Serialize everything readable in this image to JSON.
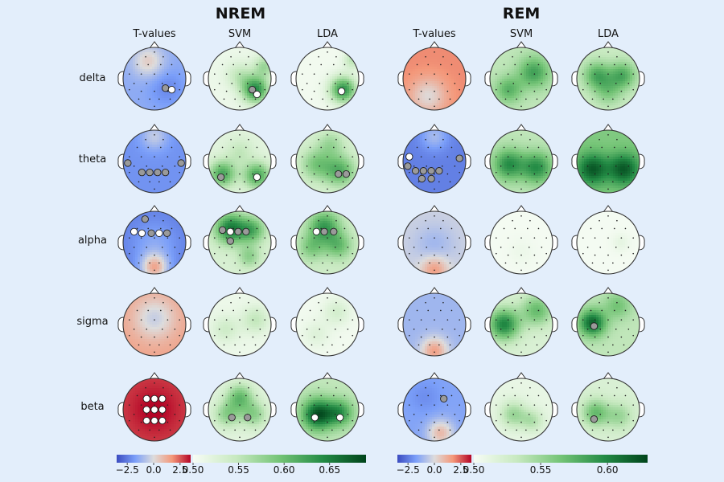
{
  "chart_data": {
    "type": "topomap-grid",
    "groups": [
      {
        "title": "NREM",
        "columns": [
          "T-values",
          "SVM",
          "LDA"
        ]
      },
      {
        "title": "REM",
        "columns": [
          "T-values",
          "SVM",
          "LDA"
        ]
      }
    ],
    "rows": [
      "delta",
      "theta",
      "alpha",
      "sigma",
      "beta"
    ],
    "colorbars": [
      {
        "name": "nrem-tvalues",
        "cmap": "coolwarm",
        "range": [
          -3.5,
          3.5
        ],
        "ticks": [
          "−2.5",
          "0.0",
          "2.5"
        ]
      },
      {
        "name": "nrem-accuracy",
        "cmap": "greens",
        "range": [
          0.5,
          0.69
        ],
        "ticks": [
          "0.50",
          "0.55",
          "0.60",
          "0.65"
        ]
      },
      {
        "name": "rem-tvalues",
        "cmap": "coolwarm",
        "range": [
          -3.5,
          3.5
        ],
        "ticks": [
          "−2.5",
          "0.0",
          "2.5"
        ]
      },
      {
        "name": "rem-accuracy",
        "cmap": "greens",
        "range": [
          0.5,
          0.63
        ],
        "ticks": [
          "0.50",
          "0.55",
          "0.60"
        ]
      }
    ],
    "maps": {
      "NREM": {
        "T-values": {
          "delta": {
            "base": -1.4,
            "blobs": [
              [
                -0.2,
                -0.55,
                0.35,
                1.8
              ],
              [
                0.4,
                0.3,
                0.4,
                -0.8
              ]
            ],
            "markers": [
              [
                0.35,
                0.3,
                "gray"
              ],
              [
                0.55,
                0.35,
                "white"
              ]
            ]
          },
          "theta": {
            "base": -2.0,
            "blobs": [
              [
                0,
                -0.8,
                0.3,
                1.5
              ]
            ],
            "markers": [
              [
                -0.85,
                0.05,
                "gray"
              ],
              [
                -0.4,
                0.35,
                "gray"
              ],
              [
                -0.15,
                0.35,
                "gray"
              ],
              [
                0.1,
                0.35,
                "gray"
              ],
              [
                0.35,
                0.35,
                "gray"
              ],
              [
                0.85,
                0.05,
                "gray"
              ]
            ]
          },
          "alpha": {
            "base": -2.4,
            "blobs": [
              [
                0,
                0.8,
                0.3,
                3.5
              ],
              [
                0,
                0.05,
                0.5,
                0.9
              ]
            ],
            "markers": [
              [
                -0.3,
                -0.75,
                "gray"
              ],
              [
                -0.65,
                -0.35,
                "white"
              ],
              [
                -0.4,
                -0.3,
                "white"
              ],
              [
                -0.1,
                -0.3,
                "gray"
              ],
              [
                0.15,
                -0.3,
                "white"
              ],
              [
                0.4,
                -0.3,
                "gray"
              ]
            ]
          },
          "sigma": {
            "base": 1.4,
            "blobs": [
              [
                0,
                -0.2,
                0.45,
                -1.8
              ]
            ],
            "markers": []
          },
          "beta": {
            "base": 2.8,
            "blobs": [
              [
                0,
                0,
                0.5,
                0.8
              ]
            ],
            "markers": [
              [
                -0.25,
                -0.35,
                "white"
              ],
              [
                0,
                -0.35,
                "white"
              ],
              [
                0.25,
                -0.35,
                "white"
              ],
              [
                -0.25,
                0,
                "white"
              ],
              [
                0,
                0,
                "white"
              ],
              [
                0.25,
                0,
                "white"
              ],
              [
                -0.25,
                0.35,
                "white"
              ],
              [
                0,
                0.35,
                "white"
              ],
              [
                0.25,
                0.35,
                "white"
              ]
            ]
          }
        },
        "SVM": {
          "delta": {
            "base": 0.51,
            "blobs": [
              [
                0.5,
                0.35,
                0.3,
                0.13
              ],
              [
                0.8,
                -0.4,
                0.25,
                0.06
              ],
              [
                0,
                -0.1,
                0.3,
                0.04
              ]
            ],
            "markers": [
              [
                0.4,
                0.35,
                "gray"
              ],
              [
                0.55,
                0.5,
                "white"
              ]
            ]
          },
          "theta": {
            "base": 0.52,
            "blobs": [
              [
                -0.55,
                0.4,
                0.3,
                0.1
              ],
              [
                0.55,
                0.45,
                0.3,
                0.1
              ],
              [
                0,
                -0.3,
                0.3,
                0.03
              ]
            ],
            "markers": [
              [
                -0.6,
                0.5,
                "gray"
              ],
              [
                0.55,
                0.5,
                "white"
              ]
            ]
          },
          "alpha": {
            "base": 0.53,
            "blobs": [
              [
                -0.3,
                -0.45,
                0.35,
                0.12
              ],
              [
                0.4,
                -0.4,
                0.3,
                0.08
              ],
              [
                0.3,
                0.45,
                0.25,
                0.05
              ]
            ],
            "markers": [
              [
                -0.55,
                -0.4,
                "gray"
              ],
              [
                -0.3,
                -0.35,
                "white"
              ],
              [
                -0.05,
                -0.35,
                "gray"
              ],
              [
                0.2,
                -0.35,
                "gray"
              ],
              [
                -0.3,
                -0.05,
                "gray"
              ]
            ]
          },
          "sigma": {
            "base": 0.51,
            "blobs": [
              [
                0.5,
                -0.15,
                0.3,
                0.04
              ],
              [
                -0.45,
                0.15,
                0.3,
                0.03
              ]
            ],
            "markers": []
          },
          "beta": {
            "base": 0.52,
            "blobs": [
              [
                0,
                -0.4,
                0.3,
                0.08
              ],
              [
                -0.4,
                0.15,
                0.3,
                0.06
              ],
              [
                0.45,
                0.15,
                0.3,
                0.06
              ]
            ],
            "markers": [
              [
                -0.25,
                0.25,
                "gray"
              ],
              [
                0.25,
                0.25,
                "gray"
              ]
            ]
          }
        },
        "LDA": {
          "delta": {
            "base": 0.505,
            "blobs": [
              [
                0.5,
                0.35,
                0.3,
                0.13
              ],
              [
                0.8,
                -0.6,
                0.2,
                0.05
              ]
            ],
            "markers": [
              [
                0.45,
                0.4,
                "white"
              ]
            ]
          },
          "theta": {
            "base": 0.53,
            "blobs": [
              [
                0.4,
                0.3,
                0.35,
                0.08
              ],
              [
                -0.35,
                0.1,
                0.35,
                0.06
              ],
              [
                0.1,
                -0.55,
                0.3,
                0.04
              ]
            ],
            "markers": [
              [
                0.35,
                0.4,
                "gray"
              ],
              [
                0.6,
                0.4,
                "gray"
              ]
            ]
          },
          "alpha": {
            "base": 0.54,
            "blobs": [
              [
                -0.1,
                -0.5,
                0.35,
                0.09
              ],
              [
                0.35,
                0.1,
                0.3,
                0.06
              ],
              [
                -0.5,
                0.15,
                0.3,
                0.05
              ]
            ],
            "markers": [
              [
                -0.35,
                -0.35,
                "white"
              ],
              [
                -0.1,
                -0.35,
                "gray"
              ],
              [
                0.2,
                -0.35,
                "gray"
              ]
            ]
          },
          "sigma": {
            "base": 0.505,
            "blobs": [
              [
                0.3,
                -0.4,
                0.3,
                0.03
              ],
              [
                -0.35,
                0.3,
                0.3,
                0.02
              ]
            ],
            "markers": []
          },
          "beta": {
            "base": 0.55,
            "blobs": [
              [
                -0.3,
                0.15,
                0.35,
                0.13
              ],
              [
                0.4,
                0.1,
                0.3,
                0.08
              ]
            ],
            "markers": [
              [
                -0.4,
                0.25,
                "white"
              ],
              [
                0.4,
                0.25,
                "white"
              ]
            ]
          }
        }
      },
      "REM": {
        "T-values": {
          "delta": {
            "base": 1.9,
            "blobs": [
              [
                -0.2,
                0.55,
                0.4,
                -1.8
              ]
            ],
            "markers": []
          },
          "theta": {
            "base": -2.4,
            "blobs": [
              [
                0,
                -0.8,
                0.3,
                1.4
              ]
            ],
            "markers": [
              [
                -0.8,
                -0.15,
                "white"
              ],
              [
                -0.85,
                0.15,
                "gray"
              ],
              [
                -0.6,
                0.3,
                "gray"
              ],
              [
                -0.35,
                0.3,
                "gray"
              ],
              [
                -0.1,
                0.3,
                "gray"
              ],
              [
                0.15,
                0.3,
                "gray"
              ],
              [
                -0.4,
                0.55,
                "gray"
              ],
              [
                -0.1,
                0.55,
                "gray"
              ],
              [
                0.8,
                -0.1,
                "gray"
              ]
            ]
          },
          "alpha": {
            "base": -0.3,
            "blobs": [
              [
                0,
                0.85,
                0.3,
                2.0
              ],
              [
                0,
                0.1,
                0.45,
                -0.8
              ]
            ],
            "markers": []
          },
          "sigma": {
            "base": -1.1,
            "blobs": [
              [
                0,
                0.85,
                0.3,
                2.6
              ]
            ],
            "markers": []
          },
          "beta": {
            "base": -1.6,
            "blobs": [
              [
                0.2,
                0.75,
                0.3,
                2.5
              ],
              [
                -0.3,
                -0.4,
                0.35,
                -0.5
              ]
            ],
            "markers": [
              [
                0.3,
                -0.35,
                "gray"
              ]
            ]
          }
        },
        "SVM": {
          "delta": {
            "base": 0.535,
            "blobs": [
              [
                0.4,
                -0.2,
                0.35,
                0.05
              ],
              [
                -0.4,
                0.35,
                0.3,
                0.04
              ]
            ],
            "markers": []
          },
          "theta": {
            "base": 0.535,
            "blobs": [
              [
                -0.4,
                0.1,
                0.35,
                0.06
              ],
              [
                0.5,
                0.2,
                0.35,
                0.06
              ]
            ],
            "markers": []
          },
          "alpha": {
            "base": 0.502,
            "blobs": [
              [
                0,
                0.3,
                0.3,
                0.005
              ]
            ],
            "markers": []
          },
          "sigma": {
            "base": 0.52,
            "blobs": [
              [
                -0.55,
                0.0,
                0.35,
                0.08
              ],
              [
                0.5,
                -0.45,
                0.35,
                0.05
              ]
            ],
            "markers": []
          },
          "beta": {
            "base": 0.51,
            "blobs": [
              [
                -0.25,
                0.15,
                0.3,
                0.04
              ],
              [
                0.35,
                0.35,
                0.25,
                0.03
              ]
            ],
            "markers": []
          }
        },
        "LDA": {
          "delta": {
            "base": 0.53,
            "blobs": [
              [
                -0.35,
                -0.1,
                0.3,
                0.05
              ],
              [
                0.45,
                -0.1,
                0.3,
                0.05
              ],
              [
                0,
                0.4,
                0.3,
                0.03
              ]
            ],
            "markers": []
          },
          "theta": {
            "base": 0.56,
            "blobs": [
              [
                -0.5,
                0.25,
                0.35,
                0.06
              ],
              [
                0.5,
                0.25,
                0.35,
                0.06
              ]
            ],
            "markers": []
          },
          "alpha": {
            "base": 0.502,
            "blobs": [
              [
                0.4,
                0.0,
                0.2,
                0.01
              ]
            ],
            "markers": []
          },
          "sigma": {
            "base": 0.535,
            "blobs": [
              [
                -0.5,
                -0.05,
                0.3,
                0.08
              ],
              [
                0.3,
                -0.6,
                0.3,
                0.03
              ]
            ],
            "markers": [
              [
                -0.45,
                0.05,
                "gray"
              ]
            ]
          },
          "beta": {
            "base": 0.52,
            "blobs": [
              [
                -0.4,
                0.1,
                0.3,
                0.05
              ],
              [
                0.35,
                0.2,
                0.3,
                0.03
              ]
            ],
            "markers": [
              [
                -0.45,
                0.3,
                "gray"
              ]
            ]
          }
        }
      }
    }
  }
}
